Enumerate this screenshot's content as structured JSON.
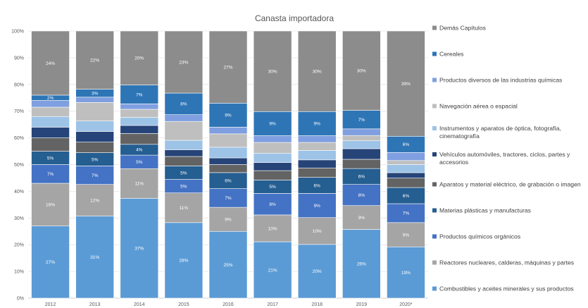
{
  "chart_data": {
    "type": "bar",
    "stacked": true,
    "percent_stacked": true,
    "title": "Canasta importadora",
    "xlabel": "",
    "ylabel": "",
    "ylim": [
      0,
      100
    ],
    "y_ticks": [
      "0%",
      "10%",
      "20%",
      "30%",
      "40%",
      "50%",
      "60%",
      "70%",
      "80%",
      "90%",
      "100%"
    ],
    "categories": [
      "2012",
      "2013",
      "2014",
      "2015",
      "2016",
      "2017",
      "2018",
      "2019",
      "2020*"
    ],
    "legend_position": "right",
    "series": [
      {
        "name": "Combustibles y aceites minerales y sus productos",
        "color": "#5B9BD5",
        "values": [
          27,
          31,
          37,
          28,
          25,
          21,
          20,
          26,
          19
        ],
        "labels": [
          "27%",
          "31%",
          "37%",
          "28%",
          "25%",
          "21%",
          "20%",
          "26%",
          "19%"
        ]
      },
      {
        "name": "Reactores nucleares, calderas, máquinas y partes",
        "color": "#A5A5A5",
        "values": [
          16,
          12,
          11,
          11,
          9,
          10,
          10,
          9,
          9
        ],
        "labels": [
          "16%",
          "12%",
          "11%",
          "11%",
          "9%",
          "10%",
          "10%",
          "9%",
          "9%"
        ]
      },
      {
        "name": "Productos químicos orgánicos",
        "color": "#4472C4",
        "values": [
          7,
          7,
          5,
          5,
          7,
          8,
          9,
          8,
          7
        ],
        "labels": [
          "7%",
          "7%",
          "5%",
          "5%",
          "7%",
          "8%",
          "9%",
          "8%",
          "7%"
        ]
      },
      {
        "name": "Materias plásticas y manufacturas",
        "color": "#255E91",
        "values": [
          5,
          5,
          4,
          5,
          6,
          5,
          6,
          6,
          6
        ],
        "labels": [
          "5%",
          "5%",
          "4%",
          "5%",
          "6%",
          "5%",
          "6%",
          "6%",
          "6%"
        ]
      },
      {
        "name": "Aparatos y material eléctrico, de grabación o imagen",
        "color": "#636363",
        "values": [
          5,
          4,
          4,
          3.5,
          3,
          3.5,
          3.5,
          3.5,
          3.5
        ],
        "labels": [
          "",
          "",
          "",
          "",
          "",
          "",
          "",
          "",
          ""
        ]
      },
      {
        "name": "Vehículos automóviles, tractores, ciclos, partes y accesorios",
        "color": "#264478",
        "values": [
          4,
          4,
          3,
          2.5,
          2.5,
          3,
          3,
          4,
          2
        ],
        "labels": [
          "",
          "",
          "",
          "",
          "",
          "",
          "",
          "",
          ""
        ]
      },
      {
        "name": "Instrumentos y aparatos de óptica, fotografía, cinematografía",
        "color": "#9DC3E6",
        "values": [
          4,
          4,
          3,
          3.5,
          4,
          3.5,
          3.5,
          3,
          3
        ],
        "labels": [
          "",
          "",
          "",
          "",
          "",
          "",
          "",
          "",
          ""
        ]
      },
      {
        "name": "Navegación aérea o espacial",
        "color": "#BFBFBF",
        "values": [
          3.5,
          7,
          3,
          7,
          5,
          4,
          3,
          2,
          1.5
        ],
        "labels": [
          "",
          "",
          "",
          "",
          "",
          "",
          "",
          "",
          ""
        ]
      },
      {
        "name": "Productos diversos de las industrias químicas",
        "color": "#7F9FE0",
        "values": [
          2.5,
          2,
          2,
          2.5,
          2.5,
          2.5,
          2.5,
          2.5,
          3
        ],
        "labels": [
          "",
          "",
          "",
          "",
          "",
          "",
          "",
          "",
          ""
        ]
      },
      {
        "name": "Cereales",
        "color": "#2E75B6",
        "values": [
          2,
          3,
          7,
          8,
          9,
          9,
          9,
          7,
          6
        ],
        "labels": [
          "2%",
          "3%",
          "7%",
          "8%",
          "9%",
          "9%",
          "9%",
          "7%",
          "6%"
        ]
      },
      {
        "name": "Demás Capítulos",
        "color": "#8C8C8C",
        "values": [
          24,
          22,
          20,
          23,
          27,
          30,
          30,
          30,
          39
        ],
        "labels": [
          "24%",
          "22%",
          "20%",
          "23%",
          "27%",
          "30%",
          "30%",
          "30%",
          "39%"
        ]
      }
    ]
  }
}
